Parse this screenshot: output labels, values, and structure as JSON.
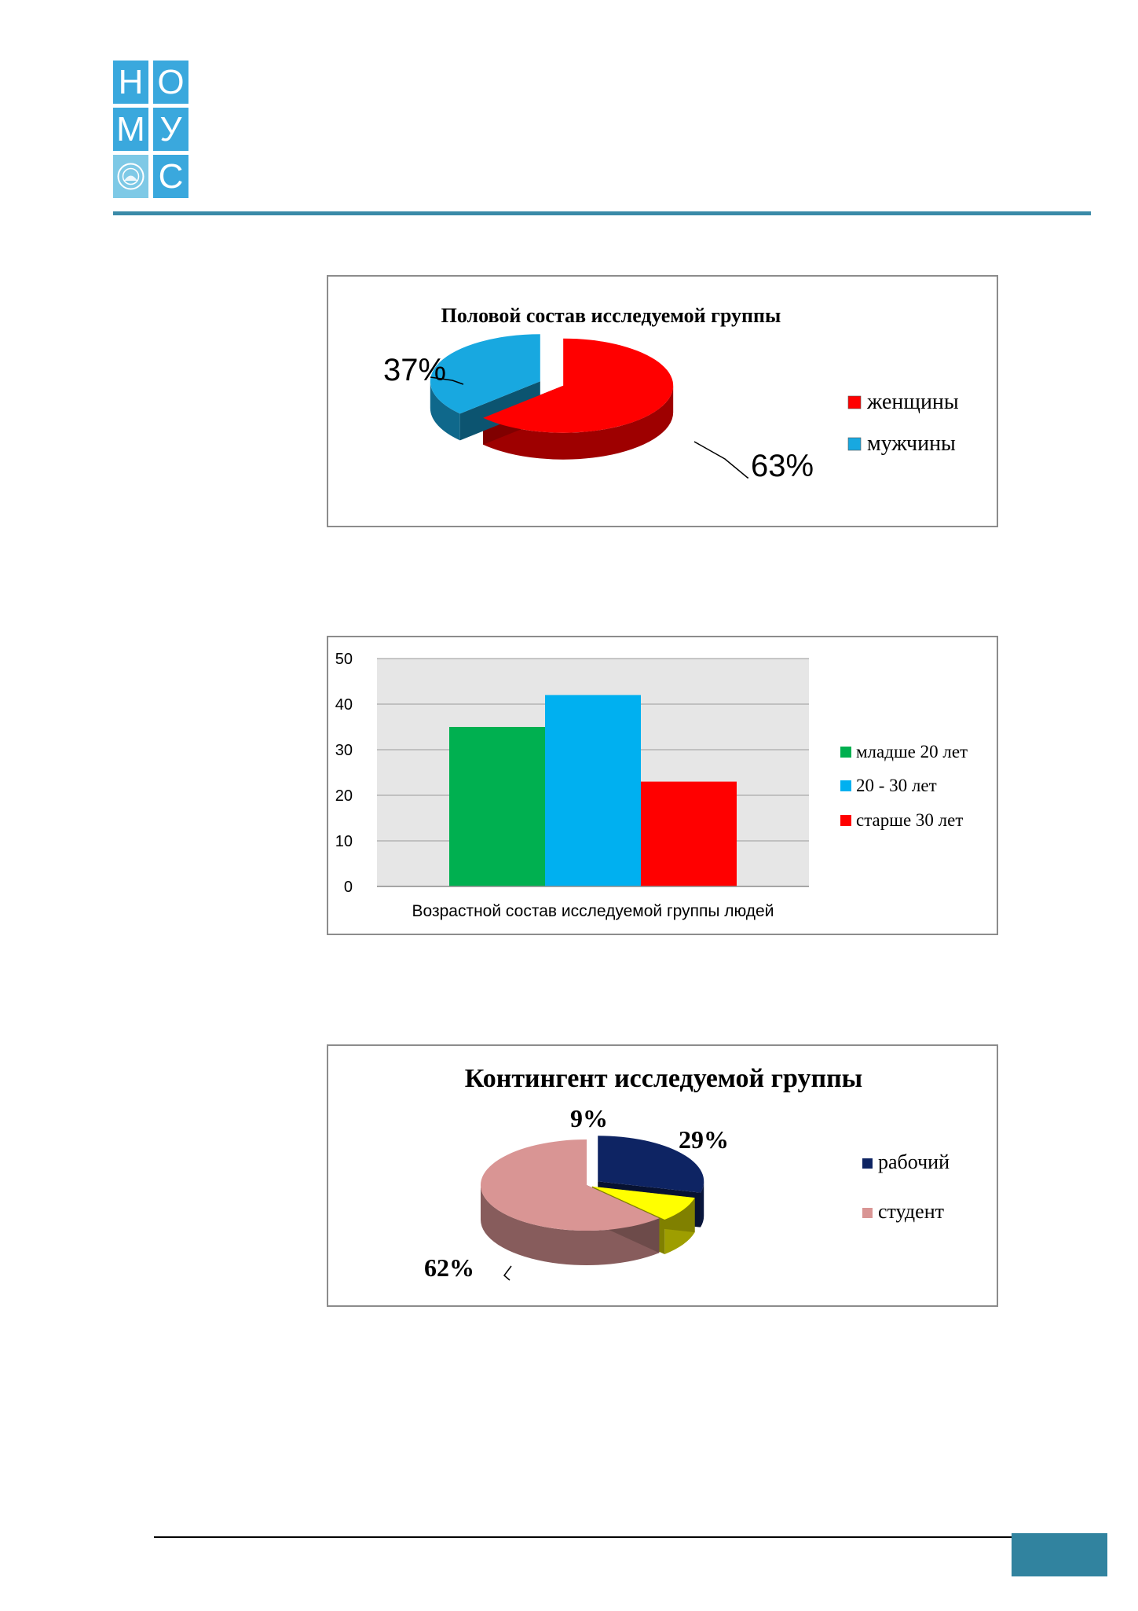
{
  "logo": {
    "cells": [
      "Н",
      "О",
      "М",
      "У",
      "",
      "С"
    ],
    "emblem": "seal-emblem"
  },
  "chart_data": [
    {
      "type": "pie",
      "title": "Половой состав исследуемой группы",
      "categories": [
        "женщины",
        "мужчины"
      ],
      "values": [
        63,
        37
      ],
      "labels": [
        "63%",
        "37%"
      ],
      "colors": [
        "#ff0000",
        "#18a8e0"
      ],
      "legend_position": "right"
    },
    {
      "type": "bar",
      "title": "",
      "xlabel": "Возрастной состав исследуемой группы людей",
      "ylabel": "",
      "ylim": [
        0,
        50
      ],
      "yticks": [
        "0",
        "10",
        "20",
        "30",
        "40",
        "50"
      ],
      "grid": true,
      "series": [
        {
          "name": "младше 20 лет",
          "values": [
            35
          ]
        },
        {
          "name": "20 - 30 лет",
          "values": [
            42
          ]
        },
        {
          "name": "старше 30 лет",
          "values": [
            23
          ]
        }
      ],
      "colors": [
        "#00b050",
        "#00b0f0",
        "#ff0000"
      ],
      "legend_position": "right"
    },
    {
      "type": "pie",
      "title": "Контингент исследуемой группы",
      "categories": [
        "рабочий",
        "",
        "студент"
      ],
      "legend": [
        "рабочий",
        "студент"
      ],
      "values": [
        29,
        9,
        62
      ],
      "labels": [
        "29%",
        "9%",
        "62%"
      ],
      "colors": [
        "#0e2463",
        "#ffff00",
        "#d99594"
      ],
      "legend_position": "right"
    }
  ]
}
